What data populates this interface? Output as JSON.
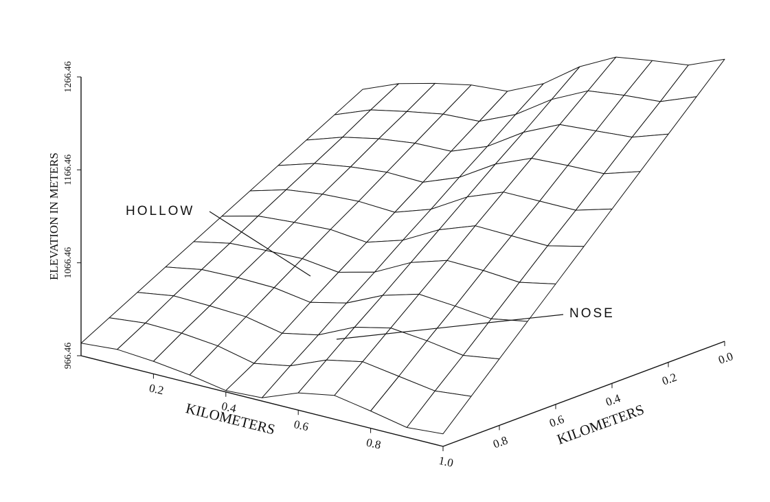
{
  "chart_data": {
    "type": "surface",
    "z_label": "ELEVATION IN METERS",
    "x_label": "KILOMETERS",
    "y_label": "KILOMETERS",
    "annotations": [
      "HOLLOW",
      "NOSE"
    ],
    "x": [
      0,
      0.1,
      0.2,
      0.3,
      0.4,
      0.5,
      0.6,
      0.7,
      0.8,
      0.9,
      1
    ],
    "y": [
      0,
      0.1,
      0.2,
      0.3,
      0.4,
      0.5,
      0.6,
      0.7,
      0.8,
      0.9,
      1
    ],
    "z": [
      [
        1140,
        1156,
        1166,
        1174,
        1177,
        1195,
        1223,
        1243,
        1249,
        1254,
        1270
      ],
      [
        1124,
        1139,
        1147,
        1154,
        1156,
        1173,
        1199,
        1218,
        1223,
        1226,
        1241
      ],
      [
        1108,
        1121,
        1129,
        1134,
        1135,
        1150,
        1175,
        1193,
        1196,
        1199,
        1212
      ],
      [
        1092,
        1104,
        1110,
        1114,
        1113,
        1128,
        1152,
        1168,
        1170,
        1171,
        1183
      ],
      [
        1076,
        1087,
        1092,
        1094,
        1092,
        1105,
        1128,
        1143,
        1143,
        1143,
        1154
      ],
      [
        1060,
        1070,
        1073,
        1075,
        1071,
        1083,
        1104,
        1118,
        1117,
        1116,
        1125
      ],
      [
        1044,
        1052,
        1054,
        1055,
        1050,
        1060,
        1080,
        1092,
        1091,
        1088,
        1096
      ],
      [
        1028,
        1035,
        1036,
        1035,
        1029,
        1038,
        1056,
        1067,
        1064,
        1060,
        1067
      ],
      [
        1012,
        1018,
        1017,
        1015,
        1007,
        1015,
        1033,
        1042,
        1038,
        1032,
        1038
      ],
      [
        996,
        1000,
        999,
        995,
        986,
        993,
        1009,
        1017,
        1011,
        1005,
        1009
      ],
      [
        980,
        983,
        980,
        975,
        968,
        970,
        985,
        992,
        985,
        977,
        980
      ]
    ],
    "xlim": [
      0,
      1
    ],
    "ylim": [
      0,
      1
    ],
    "zlim": [
      966.46,
      1266.46
    ],
    "xticks": [
      0.2,
      0.4,
      0.6,
      0.8,
      {
        "value": 1,
        "label": "1.0"
      }
    ],
    "yticks": [
      {
        "value": 0,
        "label": "0.0"
      },
      0.2,
      0.4,
      0.6,
      0.8
    ],
    "zticks": [
      966.46,
      1066.46,
      1166.46,
      1266.46
    ],
    "color": "#111111"
  }
}
